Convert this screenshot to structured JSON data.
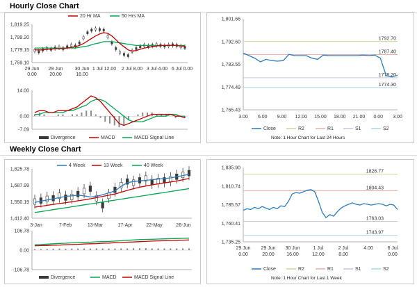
{
  "sections": {
    "hourly_title": "Hourly Close Chart",
    "weekly_title": "Weekly Close Chart"
  },
  "colors": {
    "red": "#c00000",
    "green": "#00a651",
    "blue": "#2b7bb9",
    "gray": "#8c8c8c",
    "r2": "#c6d9a0",
    "r1": "#e8b0a8",
    "s1": "#c9c3da",
    "s2": "#a8d8e0",
    "dark": "#3a3a3a"
  },
  "chart_data": [
    {
      "id": "hourly_price",
      "type": "line",
      "title": "",
      "legend": [
        "20 Hr MA",
        "50 Hrs MA"
      ],
      "y_ticks": [
        "1,819.25",
        "1,799.20",
        "1,779.15",
        "1,759.10"
      ],
      "ylim": [
        1759.1,
        1819.25
      ],
      "x_ticks": [
        [
          "29 Jun",
          "0.00"
        ],
        [
          "29 Jun",
          "20.00"
        ],
        [
          "30 Jun",
          "16.00"
        ],
        [
          "1 Jul 12.00",
          ""
        ],
        [
          "2 Jul 8.00",
          ""
        ],
        [
          "3 Jul 4.00",
          ""
        ],
        [
          "6 Jul 0.00",
          ""
        ]
      ],
      "series": [
        {
          "name": "Close",
          "values": [
            1778,
            1776,
            1779,
            1781,
            1780,
            1782,
            1783,
            1781,
            1784,
            1786,
            1785,
            1790,
            1798,
            1806,
            1810,
            1812,
            1811,
            1810,
            1800,
            1790,
            1781,
            1775,
            1772,
            1770,
            1777,
            1781,
            1784,
            1786,
            1785,
            1786,
            1787,
            1786,
            1785,
            1786,
            1787,
            1786,
            1784,
            1783
          ]
        },
        {
          "name": "20 Hr MA",
          "values": [
            1779,
            1779,
            1779,
            1780,
            1780,
            1781,
            1781,
            1781,
            1782,
            1783,
            1784,
            1786,
            1789,
            1793,
            1797,
            1801,
            1804,
            1806,
            1805,
            1801,
            1795,
            1789,
            1784,
            1779,
            1777,
            1778,
            1780,
            1782,
            1783,
            1784,
            1785,
            1786,
            1786,
            1786,
            1786,
            1786,
            1785,
            1785
          ]
        },
        {
          "name": "50 Hrs MA",
          "values": [
            1782,
            1782,
            1782,
            1782,
            1782,
            1782,
            1782,
            1782,
            1782,
            1782,
            1782,
            1783,
            1784,
            1785,
            1787,
            1789,
            1790,
            1792,
            1792,
            1792,
            1791,
            1790,
            1789,
            1788,
            1787,
            1786,
            1786,
            1786,
            1786,
            1786,
            1786,
            1786,
            1786,
            1786,
            1786,
            1786,
            1786,
            1786
          ]
        }
      ]
    },
    {
      "id": "hourly_macd",
      "type": "line",
      "y_ticks": [
        "14.00",
        "0.00",
        "-7.09"
      ],
      "ylim": [
        -7.09,
        14.0
      ],
      "legend": [
        "Divergence",
        "MACD",
        "MACD Signal Line"
      ],
      "series": [
        {
          "name": "MACD",
          "values": [
            2,
            3,
            3,
            2,
            2,
            3,
            3,
            3,
            4,
            5,
            7,
            9,
            11,
            10,
            8,
            5,
            2,
            -1,
            -4,
            -5,
            -4,
            -3,
            -2,
            -1,
            0,
            1,
            1,
            1,
            1,
            1,
            0,
            0,
            -1
          ]
        },
        {
          "name": "MACD Signal Line",
          "values": [
            1,
            1,
            2,
            2,
            2,
            2,
            2,
            3,
            3,
            4,
            5,
            6,
            8,
            9,
            9,
            8,
            6,
            4,
            2,
            0,
            -2,
            -3,
            -3,
            -3,
            -2,
            -1,
            0,
            0,
            0,
            1,
            1,
            0,
            0
          ]
        },
        {
          "name": "Divergence",
          "values": [
            1,
            2,
            1,
            0,
            0,
            1,
            1,
            0,
            1,
            1,
            2,
            3,
            3,
            1,
            -1,
            -3,
            -4,
            -5,
            -6,
            -5,
            -2,
            0,
            1,
            2,
            2,
            2,
            1,
            1,
            1,
            0,
            -1,
            0,
            -1
          ]
        }
      ]
    },
    {
      "id": "hourly_24h",
      "type": "line",
      "y_ticks": [
        "1,801.66",
        "1,792.60",
        "1,783.55",
        "1,774.49",
        "1,765.43"
      ],
      "ylim": [
        1765.43,
        1801.66
      ],
      "x_ticks": [
        "3.00",
        "6.00",
        "9.00",
        "12.00",
        "15.00",
        "18.00",
        "21.00",
        "0.00",
        "3.00"
      ],
      "levels": [
        {
          "name": "R2",
          "value": 1792.7,
          "label": "1792.70"
        },
        {
          "name": "R1",
          "value": 1787.4,
          "label": "1787.40"
        },
        {
          "name": "S1",
          "value": 1778.2,
          "label": "1778.20"
        },
        {
          "name": "S2",
          "value": 1774.3,
          "label": "1774.30"
        }
      ],
      "series": [
        {
          "name": "Close",
          "values": [
            1788,
            1787,
            1786,
            1784.5,
            1785.5,
            1785,
            1784.8,
            1785,
            1787.5,
            1787,
            1787,
            1787,
            1786,
            1785.5,
            1787.2,
            1787,
            1787,
            1787,
            1787,
            1787,
            1787,
            1787.2,
            1787,
            1787.2,
            1786,
            1779,
            1778.5,
            1779.2
          ]
        }
      ],
      "legend": [
        "Close",
        "R2",
        "R1",
        "S1",
        "S2"
      ],
      "note": "Note: 1 Hour Chart for Last 24 Hours"
    },
    {
      "id": "weekly_price",
      "type": "line",
      "legend": [
        "4 Week",
        "13 Week",
        "40 Week"
      ],
      "y_ticks": [
        "1,825.78",
        "1,687.99",
        "1,550.19",
        "1,412.40"
      ],
      "ylim": [
        1412.4,
        1825.78
      ],
      "x_ticks": [
        "3-Jan",
        "7-Feb",
        "13-Mar",
        "17-Apr",
        "22-May",
        "26-Jun"
      ],
      "series": [
        {
          "name": "4 Week",
          "values": [
            1545,
            1555,
            1565,
            1575,
            1585,
            1595,
            1600,
            1605,
            1600,
            1590,
            1595,
            1610,
            1625,
            1640,
            1680,
            1710,
            1720,
            1725,
            1730,
            1735,
            1740,
            1745,
            1750,
            1760,
            1770,
            1780
          ]
        },
        {
          "name": "13 Week",
          "values": [
            1505,
            1512,
            1520,
            1528,
            1535,
            1542,
            1550,
            1558,
            1566,
            1575,
            1585,
            1595,
            1605,
            1615,
            1630,
            1645,
            1660,
            1672,
            1682,
            1692,
            1700,
            1708,
            1716,
            1724,
            1735,
            1745
          ]
        },
        {
          "name": "40 Week",
          "values": [
            1460,
            1468,
            1476,
            1484,
            1492,
            1500,
            1508,
            1516,
            1524,
            1532,
            1540,
            1548,
            1556,
            1564,
            1572,
            1580,
            1588,
            1596,
            1604,
            1612,
            1620,
            1628,
            1636,
            1644,
            1652,
            1660
          ]
        },
        {
          "name": "Weekly",
          "values": [
            1552,
            1560,
            1575,
            1580,
            1600,
            1585,
            1590,
            1615,
            1640,
            1660,
            1580,
            1520,
            1600,
            1650,
            1690,
            1720,
            1710,
            1730,
            1745,
            1715,
            1725,
            1730,
            1740,
            1760,
            1775,
            1790
          ]
        }
      ]
    },
    {
      "id": "weekly_macd",
      "type": "line",
      "y_ticks": [
        "106.78",
        "0.00",
        "-106.78"
      ],
      "ylim": [
        -106.78,
        106.78
      ],
      "legend": [
        "Divergence",
        "MACD",
        "MACD Signal Line"
      ],
      "series": [
        {
          "name": "MACD",
          "values": [
            30,
            31,
            33,
            35,
            37,
            38,
            40,
            41,
            43,
            44,
            46,
            47,
            48,
            50,
            52,
            54,
            56,
            58,
            59,
            60,
            61,
            62,
            63,
            64,
            65,
            66
          ]
        },
        {
          "name": "MACD Signal Line",
          "values": [
            24,
            25,
            26,
            27,
            28,
            30,
            31,
            32,
            34,
            35,
            36,
            38,
            39,
            41,
            42,
            44,
            45,
            47,
            48,
            50,
            51,
            52,
            53,
            54,
            55,
            56
          ]
        },
        {
          "name": "Divergence",
          "values": [
            6,
            6,
            7,
            8,
            9,
            8,
            9,
            9,
            9,
            9,
            10,
            9,
            9,
            9,
            10,
            10,
            11,
            11,
            11,
            10,
            10,
            10,
            10,
            10,
            10,
            10
          ]
        }
      ]
    },
    {
      "id": "weekly_1week",
      "type": "line",
      "y_ticks": [
        "1,835.90",
        "1,810.74",
        "1,785.57",
        "1,760.41",
        "1,735.25"
      ],
      "ylim": [
        1735.25,
        1835.9
      ],
      "x_ticks": [
        [
          "29 Jun",
          "0.00"
        ],
        [
          "29 Jun",
          "20.00"
        ],
        [
          "30 Jun",
          "16.00"
        ],
        [
          "1 Jul",
          "12.00"
        ],
        [
          "2 Jul",
          "8.00"
        ],
        [
          "4.00",
          ""
        ],
        [
          "6 Jul",
          "0.00"
        ]
      ],
      "levels": [
        {
          "name": "R2",
          "value": 1826.77,
          "label": "1826.77"
        },
        {
          "name": "R1",
          "value": 1804.43,
          "label": "1804.43"
        },
        {
          "name": "S1",
          "value": 1763.03,
          "label": "1763.03"
        },
        {
          "name": "S2",
          "value": 1743.97,
          "label": "1743.97"
        }
      ],
      "series": [
        {
          "name": "Close",
          "values": [
            1778,
            1780,
            1779,
            1782,
            1780,
            1783,
            1781,
            1779,
            1782,
            1780,
            1784,
            1783,
            1790,
            1800,
            1802,
            1801,
            1803,
            1805,
            1806,
            1803,
            1790,
            1775,
            1768,
            1772,
            1770,
            1776,
            1781,
            1784,
            1786,
            1788,
            1786,
            1785,
            1787,
            1786,
            1785,
            1786,
            1787,
            1786,
            1784,
            1786,
            1785,
            1779
          ]
        }
      ],
      "legend": [
        "Close",
        "R2",
        "R1",
        "S1",
        "S2"
      ],
      "note": "Note: 1 Hour Chart for Last 1 Week"
    }
  ]
}
